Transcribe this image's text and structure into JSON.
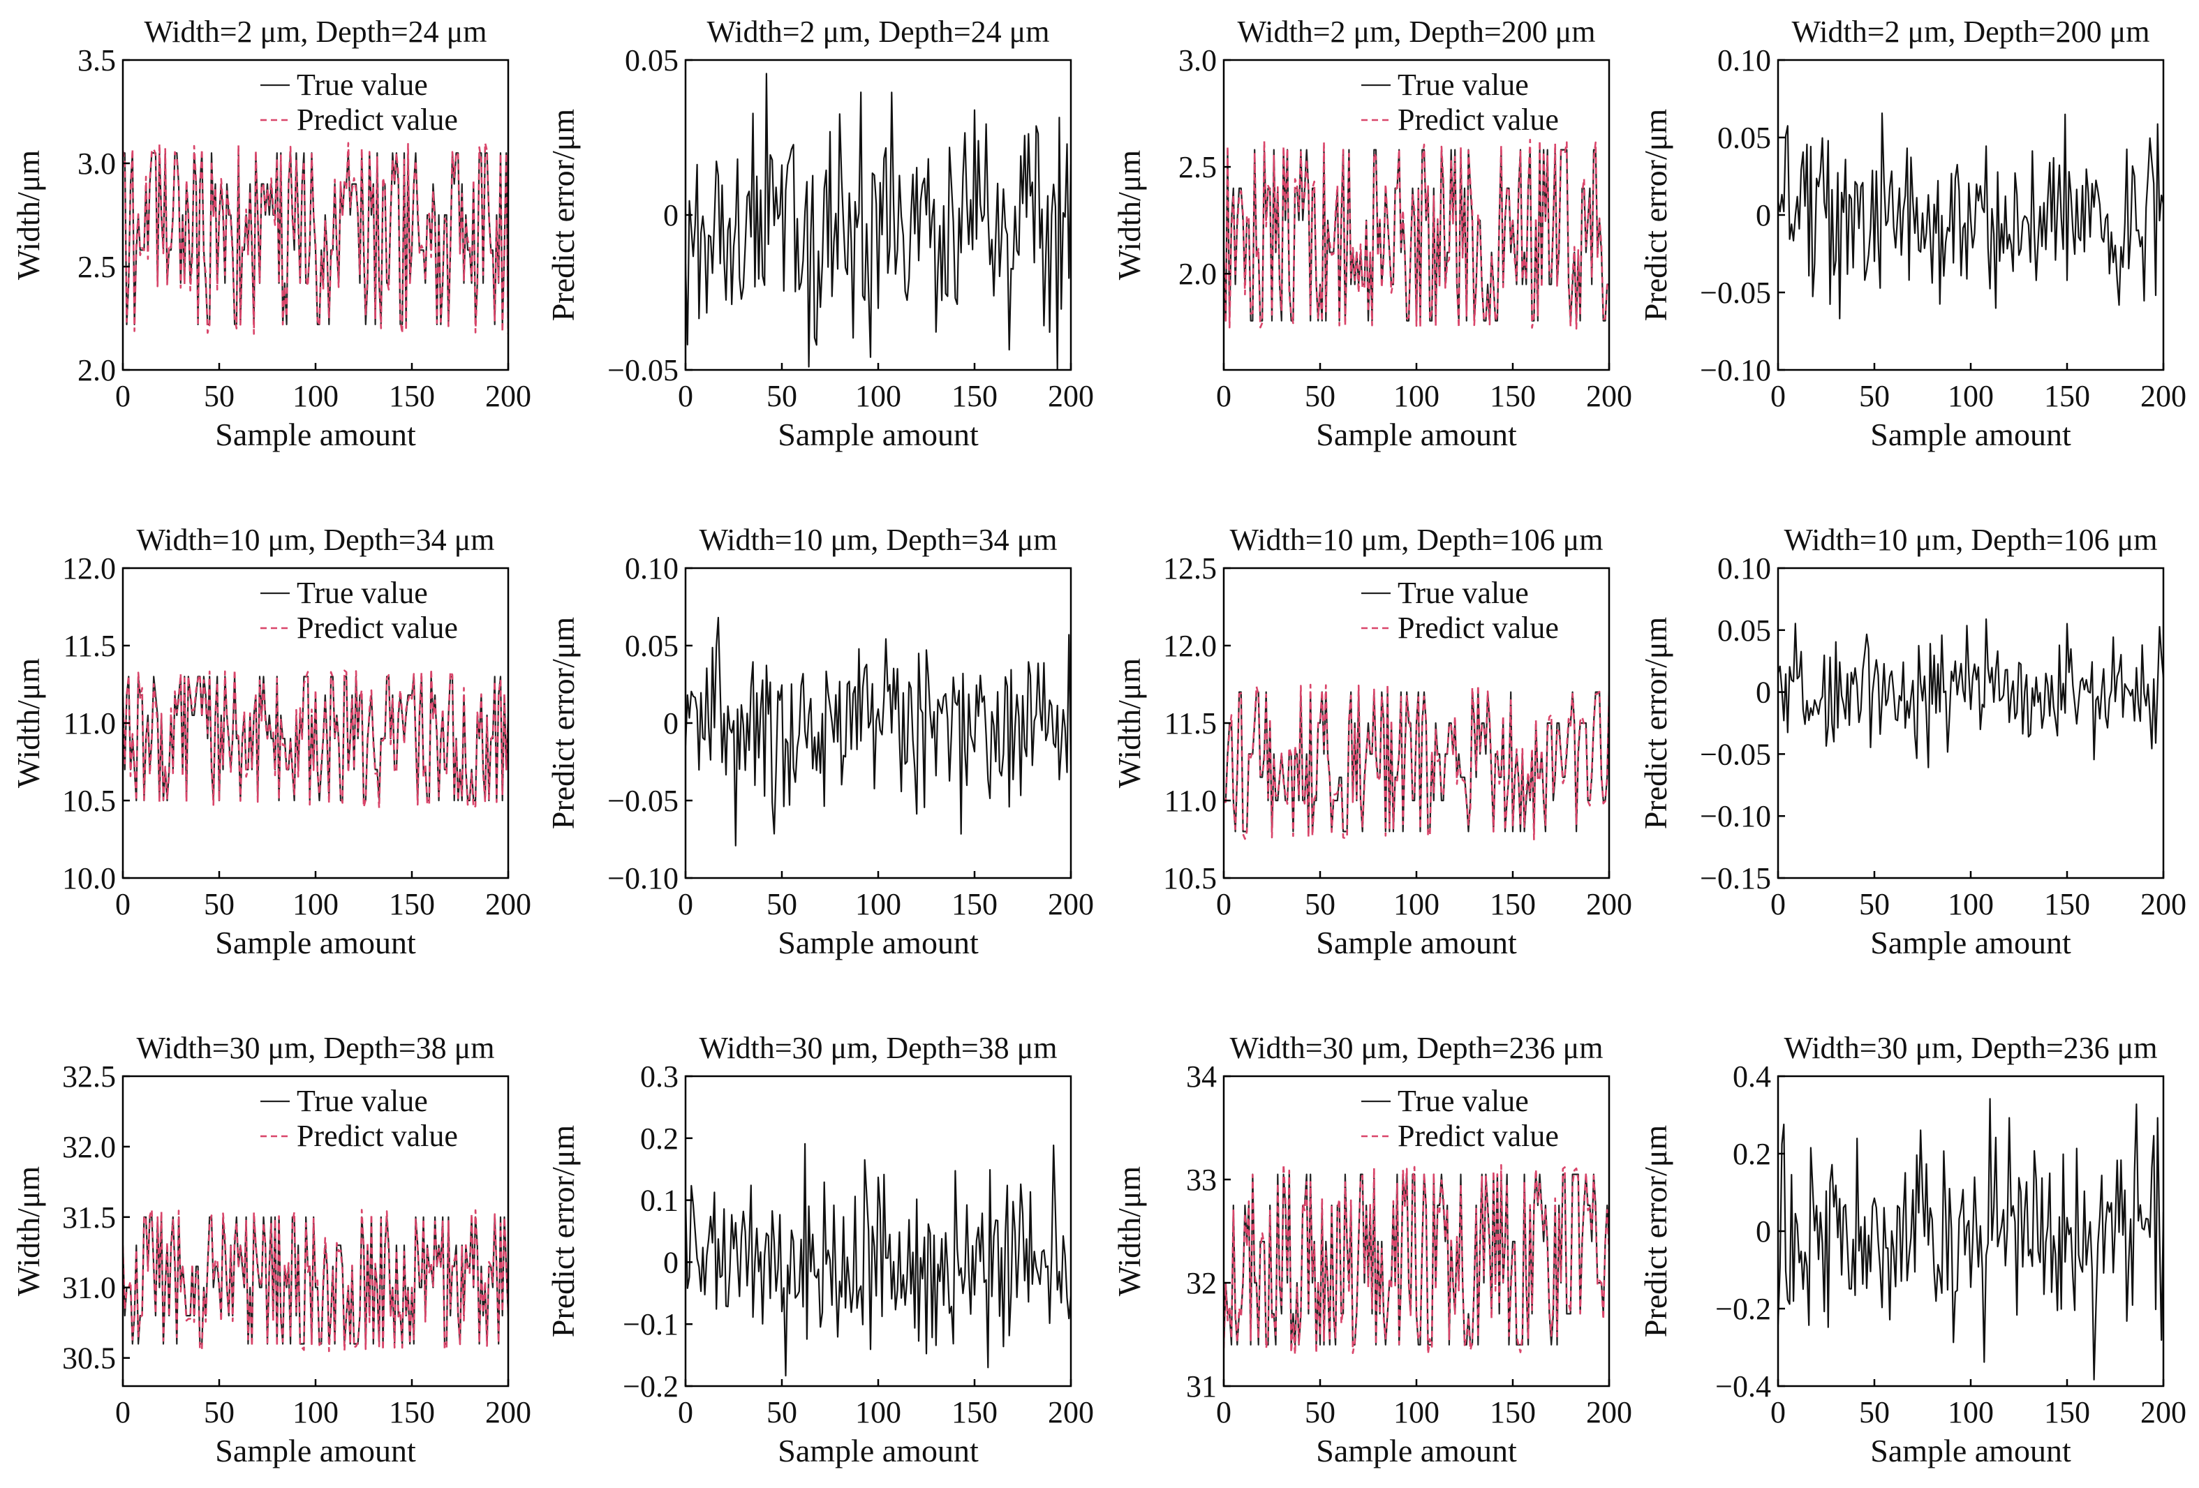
{
  "chart_data": [
    {
      "type": "line",
      "panel": "width",
      "title": "Width=2 μm, Depth=24 μm",
      "xlabel": "Sample amount",
      "ylabel": "Width/μm",
      "xlim": [
        0,
        200
      ],
      "ylim": [
        2.0,
        3.5
      ],
      "xticks": [
        0,
        50,
        100,
        150,
        200
      ],
      "xtick_labels": [
        "0",
        "50",
        "100",
        "150",
        "200"
      ],
      "yticks": [
        2.0,
        2.5,
        3.0,
        3.5
      ],
      "ytick_labels": [
        "2.0",
        "2.5",
        "3.0",
        "3.5"
      ],
      "levels": [
        2.22,
        2.42,
        2.58,
        2.75,
        2.9,
        3.05
      ],
      "series": [
        {
          "name": "True value",
          "color": "#222222"
        },
        {
          "name": "Predict value",
          "color": "#d9456a"
        }
      ],
      "legend": "top-right",
      "seed": 11
    },
    {
      "type": "line",
      "panel": "error",
      "title": "Width=2 μm, Depth=24 μm",
      "xlabel": "Sample amount",
      "ylabel": "Predict error/μm",
      "xlim": [
        0,
        200
      ],
      "ylim": [
        -0.05,
        0.05
      ],
      "xticks": [
        0,
        50,
        100,
        150,
        200
      ],
      "xtick_labels": [
        "0",
        "50",
        "100",
        "150",
        "200"
      ],
      "yticks": [
        -0.05,
        0,
        0.05
      ],
      "ytick_labels": [
        "−0.05",
        "0",
        "0.05"
      ],
      "amp": 0.045,
      "seed": 12
    },
    {
      "type": "line",
      "panel": "width",
      "title": "Width=2 μm, Depth=200 μm",
      "xlabel": "Sample amount",
      "ylabel": "Width/μm",
      "xlim": [
        0,
        200
      ],
      "ylim": [
        1.55,
        3.0
      ],
      "xticks": [
        0,
        50,
        100,
        150,
        200
      ],
      "xtick_labels": [
        "0",
        "50",
        "100",
        "150",
        "200"
      ],
      "yticks": [
        2.0,
        2.5,
        3.0
      ],
      "ytick_labels": [
        "2.0",
        "2.5",
        "3.0"
      ],
      "levels": [
        1.78,
        1.95,
        2.1,
        2.25,
        2.4,
        2.58
      ],
      "series": [
        {
          "name": "True value",
          "color": "#222222"
        },
        {
          "name": "Predict value",
          "color": "#d9456a"
        }
      ],
      "legend": "top-right",
      "seed": 13
    },
    {
      "type": "line",
      "panel": "error",
      "title": "Width=2 μm, Depth=200 μm",
      "xlabel": "Sample amount",
      "ylabel": "Predict error/μm",
      "xlim": [
        0,
        200
      ],
      "ylim": [
        -0.1,
        0.1
      ],
      "xticks": [
        0,
        50,
        100,
        150,
        200
      ],
      "xtick_labels": [
        "0",
        "50",
        "100",
        "150",
        "200"
      ],
      "yticks": [
        -0.1,
        -0.05,
        0,
        0.05,
        0.1
      ],
      "ytick_labels": [
        "−0.10",
        "−0.05",
        "0",
        "0.05",
        "0.10"
      ],
      "amp": 0.06,
      "seed": 14
    },
    {
      "type": "line",
      "panel": "width",
      "title": "Width=10 μm, Depth=34 μm",
      "xlabel": "Sample amount",
      "ylabel": "Width/μm",
      "xlim": [
        0,
        200
      ],
      "ylim": [
        10.0,
        12.0
      ],
      "xticks": [
        0,
        50,
        100,
        150,
        200
      ],
      "xtick_labels": [
        "0",
        "50",
        "100",
        "150",
        "200"
      ],
      "yticks": [
        10.0,
        10.5,
        11.0,
        11.5,
        12.0
      ],
      "ytick_labels": [
        "10.0",
        "10.5",
        "11.0",
        "11.5",
        "12.0"
      ],
      "levels": [
        10.5,
        10.7,
        10.9,
        11.05,
        11.18,
        11.3
      ],
      "series": [
        {
          "name": "True value",
          "color": "#222222"
        },
        {
          "name": "Predict value",
          "color": "#d9456a"
        }
      ],
      "legend": "top-right",
      "seed": 15
    },
    {
      "type": "line",
      "panel": "error",
      "title": "Width=10 μm, Depth=34 μm",
      "xlabel": "Sample amount",
      "ylabel": "Predict error/μm",
      "xlim": [
        0,
        200
      ],
      "ylim": [
        -0.1,
        0.1
      ],
      "xticks": [
        0,
        50,
        100,
        150,
        200
      ],
      "xtick_labels": [
        "0",
        "50",
        "100",
        "150",
        "200"
      ],
      "yticks": [
        -0.1,
        -0.05,
        0,
        0.05,
        0.1
      ],
      "ytick_labels": [
        "−0.10",
        "−0.05",
        "0",
        "0.05",
        "0.10"
      ],
      "amp": 0.065,
      "seed": 16
    },
    {
      "type": "line",
      "panel": "width",
      "title": "Width=10 μm, Depth=106 μm",
      "xlabel": "Sample amount",
      "ylabel": "Width/μm",
      "xlim": [
        0,
        200
      ],
      "ylim": [
        10.5,
        12.5
      ],
      "xticks": [
        0,
        50,
        100,
        150,
        200
      ],
      "xtick_labels": [
        "0",
        "50",
        "100",
        "150",
        "200"
      ],
      "yticks": [
        10.5,
        11.0,
        11.5,
        12.0,
        12.5
      ],
      "ytick_labels": [
        "10.5",
        "11.0",
        "11.5",
        "12.0",
        "12.5"
      ],
      "levels": [
        10.8,
        11.0,
        11.15,
        11.3,
        11.5,
        11.7
      ],
      "series": [
        {
          "name": "True value",
          "color": "#222222"
        },
        {
          "name": "Predict value",
          "color": "#d9456a"
        }
      ],
      "legend": "top-right",
      "seed": 17
    },
    {
      "type": "line",
      "panel": "error",
      "title": "Width=10 μm, Depth=106 μm",
      "xlabel": "Sample amount",
      "ylabel": "Predict error/μm",
      "xlim": [
        0,
        200
      ],
      "ylim": [
        -0.15,
        0.1
      ],
      "xticks": [
        0,
        50,
        100,
        150,
        200
      ],
      "xtick_labels": [
        "0",
        "50",
        "100",
        "150",
        "200"
      ],
      "yticks": [
        -0.15,
        -0.1,
        -0.05,
        0,
        0.05,
        0.1
      ],
      "ytick_labels": [
        "−0.15",
        "−0.10",
        "−0.05",
        "0",
        "0.05",
        "0.10"
      ],
      "amp": 0.055,
      "seed": 18
    },
    {
      "type": "line",
      "panel": "width",
      "title": "Width=30 μm, Depth=38 μm",
      "xlabel": "Sample amount",
      "ylabel": "Width/μm",
      "xlim": [
        0,
        200
      ],
      "ylim": [
        30.3,
        32.5
      ],
      "xticks": [
        0,
        50,
        100,
        150,
        200
      ],
      "xtick_labels": [
        "0",
        "50",
        "100",
        "150",
        "200"
      ],
      "yticks": [
        30.5,
        31.0,
        31.5,
        32.0,
        32.5
      ],
      "ytick_labels": [
        "30.5",
        "31.0",
        "31.5",
        "32.0",
        "32.5"
      ],
      "levels": [
        30.6,
        30.8,
        31.0,
        31.15,
        31.3,
        31.5
      ],
      "series": [
        {
          "name": "True value",
          "color": "#222222"
        },
        {
          "name": "Predict value",
          "color": "#d9456a"
        }
      ],
      "legend": "top-right",
      "seed": 19
    },
    {
      "type": "line",
      "panel": "error",
      "title": "Width=30 μm, Depth=38 μm",
      "xlabel": "Sample amount",
      "ylabel": "Predict error/μm",
      "xlim": [
        0,
        200
      ],
      "ylim": [
        -0.2,
        0.3
      ],
      "xticks": [
        0,
        50,
        100,
        150,
        200
      ],
      "xtick_labels": [
        "0",
        "50",
        "100",
        "150",
        "200"
      ],
      "yticks": [
        -0.2,
        -0.1,
        0,
        0.1,
        0.2,
        0.3
      ],
      "ytick_labels": [
        "−0.2",
        "−0.1",
        "0",
        "0.1",
        "0.2",
        "0.3"
      ],
      "amp": 0.17,
      "seed": 20
    },
    {
      "type": "line",
      "panel": "width",
      "title": "Width=30 μm, Depth=236 μm",
      "xlabel": "Sample amount",
      "ylabel": "Width/μm",
      "xlim": [
        0,
        200
      ],
      "ylim": [
        31.0,
        34.0
      ],
      "xticks": [
        0,
        50,
        100,
        150,
        200
      ],
      "xtick_labels": [
        "0",
        "50",
        "100",
        "150",
        "200"
      ],
      "yticks": [
        31,
        32,
        33,
        34
      ],
      "ytick_labels": [
        "31",
        "32",
        "33",
        "34"
      ],
      "levels": [
        31.4,
        31.7,
        32.0,
        32.4,
        32.75,
        33.05
      ],
      "series": [
        {
          "name": "True value",
          "color": "#222222"
        },
        {
          "name": "Predict value",
          "color": "#d9456a"
        }
      ],
      "legend": "top-right",
      "seed": 21
    },
    {
      "type": "line",
      "panel": "error",
      "title": "Width=30 μm, Depth=236 μm",
      "xlabel": "Sample amount",
      "ylabel": "Predict error/μm",
      "xlim": [
        0,
        200
      ],
      "ylim": [
        -0.4,
        0.4
      ],
      "xticks": [
        0,
        50,
        100,
        150,
        200
      ],
      "xtick_labels": [
        "0",
        "50",
        "100",
        "150",
        "200"
      ],
      "yticks": [
        -0.4,
        -0.2,
        0,
        0.2,
        0.4
      ],
      "ytick_labels": [
        "−0.4",
        "−0.2",
        "0",
        "0.2",
        "0.4"
      ],
      "amp": 0.32,
      "seed": 22
    }
  ]
}
